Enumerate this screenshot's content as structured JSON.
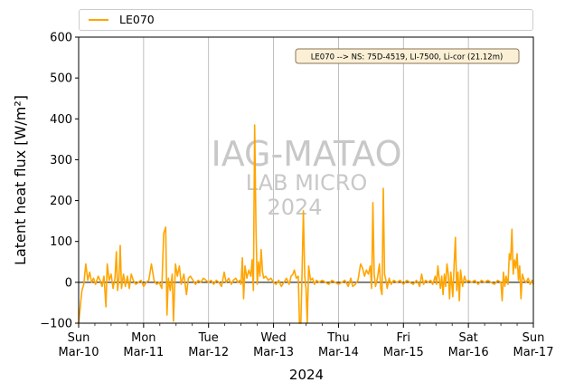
{
  "chart_data": {
    "type": "line",
    "ylabel": "Latent heat flux [W/m²]",
    "xlabel": "2024",
    "ylim": [
      -100,
      600
    ],
    "yticks": [
      -100,
      0,
      100,
      200,
      300,
      400,
      500,
      600
    ],
    "x_range_days": [
      0,
      7
    ],
    "xticks": [
      {
        "day": 0,
        "top": "Sun",
        "bottom": "Mar-10"
      },
      {
        "day": 1,
        "top": "Mon",
        "bottom": "Mar-11"
      },
      {
        "day": 2,
        "top": "Tue",
        "bottom": "Mar-12"
      },
      {
        "day": 3,
        "top": "Wed",
        "bottom": "Mar-13"
      },
      {
        "day": 4,
        "top": "Thu",
        "bottom": "Mar-14"
      },
      {
        "day": 5,
        "top": "Fri",
        "bottom": "Mar-15"
      },
      {
        "day": 6,
        "top": "Sat",
        "bottom": "Mar-16"
      },
      {
        "day": 7,
        "top": "Sun",
        "bottom": "Mar-17"
      }
    ],
    "grid": "vertical at day ticks",
    "legend": {
      "placement": "top (above plot)"
    },
    "annotation": "LE070 --> NS: 75D-4519, LI-7500, Li-cor (21.12m)",
    "watermark": [
      "IAG-MATAO",
      "LAB MICRO",
      "2024"
    ],
    "series": [
      {
        "name": "LE070",
        "color": "#FFA500",
        "points": [
          [
            0.0,
            -100
          ],
          [
            0.05,
            -20
          ],
          [
            0.08,
            -5
          ],
          [
            0.11,
            45
          ],
          [
            0.14,
            5
          ],
          [
            0.17,
            25
          ],
          [
            0.2,
            0
          ],
          [
            0.23,
            10
          ],
          [
            0.26,
            -5
          ],
          [
            0.3,
            15
          ],
          [
            0.33,
            5
          ],
          [
            0.36,
            -10
          ],
          [
            0.39,
            15
          ],
          [
            0.42,
            -60
          ],
          [
            0.44,
            45
          ],
          [
            0.47,
            5
          ],
          [
            0.5,
            20
          ],
          [
            0.53,
            -15
          ],
          [
            0.56,
            10
          ],
          [
            0.58,
            75
          ],
          [
            0.6,
            -20
          ],
          [
            0.62,
            10
          ],
          [
            0.64,
            90
          ],
          [
            0.66,
            -15
          ],
          [
            0.69,
            20
          ],
          [
            0.72,
            -10
          ],
          [
            0.75,
            15
          ],
          [
            0.78,
            -15
          ],
          [
            0.81,
            20
          ],
          [
            0.84,
            5
          ],
          [
            0.88,
            -5
          ],
          [
            0.92,
            0
          ],
          [
            0.96,
            5
          ],
          [
            1.0,
            -10
          ],
          [
            1.04,
            0
          ],
          [
            1.08,
            5
          ],
          [
            1.12,
            45
          ],
          [
            1.16,
            5
          ],
          [
            1.2,
            -5
          ],
          [
            1.24,
            0
          ],
          [
            1.28,
            -15
          ],
          [
            1.31,
            120
          ],
          [
            1.34,
            135
          ],
          [
            1.36,
            -80
          ],
          [
            1.38,
            10
          ],
          [
            1.41,
            -20
          ],
          [
            1.44,
            20
          ],
          [
            1.46,
            -95
          ],
          [
            1.49,
            45
          ],
          [
            1.52,
            15
          ],
          [
            1.55,
            40
          ],
          [
            1.58,
            -5
          ],
          [
            1.62,
            20
          ],
          [
            1.66,
            -30
          ],
          [
            1.69,
            10
          ],
          [
            1.72,
            15
          ],
          [
            1.76,
            5
          ],
          [
            1.8,
            -5
          ],
          [
            1.84,
            5
          ],
          [
            1.88,
            0
          ],
          [
            1.92,
            10
          ],
          [
            1.96,
            5
          ],
          [
            2.0,
            0
          ],
          [
            2.04,
            5
          ],
          [
            2.08,
            -5
          ],
          [
            2.12,
            5
          ],
          [
            2.16,
            0
          ],
          [
            2.2,
            -10
          ],
          [
            2.24,
            25
          ],
          [
            2.27,
            0
          ],
          [
            2.31,
            10
          ],
          [
            2.35,
            -5
          ],
          [
            2.38,
            5
          ],
          [
            2.42,
            10
          ],
          [
            2.45,
            0
          ],
          [
            2.48,
            5
          ],
          [
            2.5,
            -5
          ],
          [
            2.52,
            60
          ],
          [
            2.54,
            -40
          ],
          [
            2.56,
            40
          ],
          [
            2.59,
            10
          ],
          [
            2.62,
            30
          ],
          [
            2.65,
            15
          ],
          [
            2.67,
            55
          ],
          [
            2.69,
            -20
          ],
          [
            2.71,
            385
          ],
          [
            2.73,
            125
          ],
          [
            2.75,
            -5
          ],
          [
            2.77,
            50
          ],
          [
            2.79,
            15
          ],
          [
            2.81,
            80
          ],
          [
            2.83,
            25
          ],
          [
            2.85,
            10
          ],
          [
            2.88,
            15
          ],
          [
            2.92,
            5
          ],
          [
            2.96,
            10
          ],
          [
            3.0,
            0
          ],
          [
            3.04,
            -5
          ],
          [
            3.08,
            5
          ],
          [
            3.12,
            -10
          ],
          [
            3.16,
            0
          ],
          [
            3.2,
            10
          ],
          [
            3.24,
            -5
          ],
          [
            3.27,
            15
          ],
          [
            3.3,
            20
          ],
          [
            3.32,
            30
          ],
          [
            3.35,
            10
          ],
          [
            3.38,
            15
          ],
          [
            3.4,
            -100
          ],
          [
            3.42,
            -100
          ],
          [
            3.44,
            30
          ],
          [
            3.46,
            175
          ],
          [
            3.48,
            15
          ],
          [
            3.5,
            -15
          ],
          [
            3.52,
            -100
          ],
          [
            3.54,
            40
          ],
          [
            3.57,
            5
          ],
          [
            3.6,
            10
          ],
          [
            3.63,
            -5
          ],
          [
            3.66,
            5
          ],
          [
            3.7,
            0
          ],
          [
            3.75,
            5
          ],
          [
            3.8,
            0
          ],
          [
            3.85,
            -5
          ],
          [
            3.9,
            5
          ],
          [
            3.95,
            0
          ],
          [
            4.0,
            -5
          ],
          [
            4.05,
            0
          ],
          [
            4.1,
            5
          ],
          [
            4.15,
            -10
          ],
          [
            4.19,
            10
          ],
          [
            4.22,
            -10
          ],
          [
            4.26,
            -5
          ],
          [
            4.3,
            5
          ],
          [
            4.34,
            45
          ],
          [
            4.37,
            35
          ],
          [
            4.4,
            15
          ],
          [
            4.43,
            30
          ],
          [
            4.46,
            20
          ],
          [
            4.49,
            40
          ],
          [
            4.51,
            -15
          ],
          [
            4.53,
            195
          ],
          [
            4.55,
            20
          ],
          [
            4.57,
            -10
          ],
          [
            4.6,
            10
          ],
          [
            4.63,
            45
          ],
          [
            4.65,
            -15
          ],
          [
            4.67,
            -30
          ],
          [
            4.69,
            230
          ],
          [
            4.71,
            20
          ],
          [
            4.73,
            5
          ],
          [
            4.75,
            -15
          ],
          [
            4.78,
            10
          ],
          [
            4.81,
            -5
          ],
          [
            4.85,
            5
          ],
          [
            4.9,
            0
          ],
          [
            4.95,
            5
          ],
          [
            5.0,
            -5
          ],
          [
            5.05,
            5
          ],
          [
            5.1,
            0
          ],
          [
            5.15,
            -5
          ],
          [
            5.2,
            5
          ],
          [
            5.25,
            -10
          ],
          [
            5.28,
            20
          ],
          [
            5.31,
            -5
          ],
          [
            5.34,
            5
          ],
          [
            5.38,
            0
          ],
          [
            5.42,
            5
          ],
          [
            5.45,
            -5
          ],
          [
            5.49,
            15
          ],
          [
            5.51,
            -5
          ],
          [
            5.53,
            40
          ],
          [
            5.55,
            10
          ],
          [
            5.57,
            -15
          ],
          [
            5.59,
            15
          ],
          [
            5.61,
            -30
          ],
          [
            5.63,
            20
          ],
          [
            5.65,
            -10
          ],
          [
            5.67,
            45
          ],
          [
            5.69,
            20
          ],
          [
            5.71,
            -40
          ],
          [
            5.73,
            25
          ],
          [
            5.76,
            -35
          ],
          [
            5.78,
            40
          ],
          [
            5.8,
            110
          ],
          [
            5.82,
            -20
          ],
          [
            5.84,
            25
          ],
          [
            5.86,
            -45
          ],
          [
            5.88,
            30
          ],
          [
            5.91,
            -10
          ],
          [
            5.94,
            15
          ],
          [
            5.97,
            0
          ],
          [
            6.0,
            5
          ],
          [
            6.05,
            0
          ],
          [
            6.1,
            5
          ],
          [
            6.15,
            -5
          ],
          [
            6.2,
            5
          ],
          [
            6.25,
            0
          ],
          [
            6.3,
            5
          ],
          [
            6.35,
            0
          ],
          [
            6.4,
            -5
          ],
          [
            6.45,
            5
          ],
          [
            6.5,
            0
          ],
          [
            6.52,
            -45
          ],
          [
            6.54,
            25
          ],
          [
            6.56,
            -10
          ],
          [
            6.58,
            15
          ],
          [
            6.61,
            -5
          ],
          [
            6.63,
            70
          ],
          [
            6.65,
            55
          ],
          [
            6.67,
            130
          ],
          [
            6.69,
            20
          ],
          [
            6.71,
            55
          ],
          [
            6.73,
            35
          ],
          [
            6.75,
            70
          ],
          [
            6.77,
            5
          ],
          [
            6.79,
            40
          ],
          [
            6.81,
            -40
          ],
          [
            6.83,
            20
          ],
          [
            6.86,
            5
          ],
          [
            6.89,
            0
          ],
          [
            6.92,
            10
          ],
          [
            6.95,
            -5
          ],
          [
            6.98,
            5
          ],
          [
            7.0,
            -5
          ]
        ]
      }
    ]
  }
}
